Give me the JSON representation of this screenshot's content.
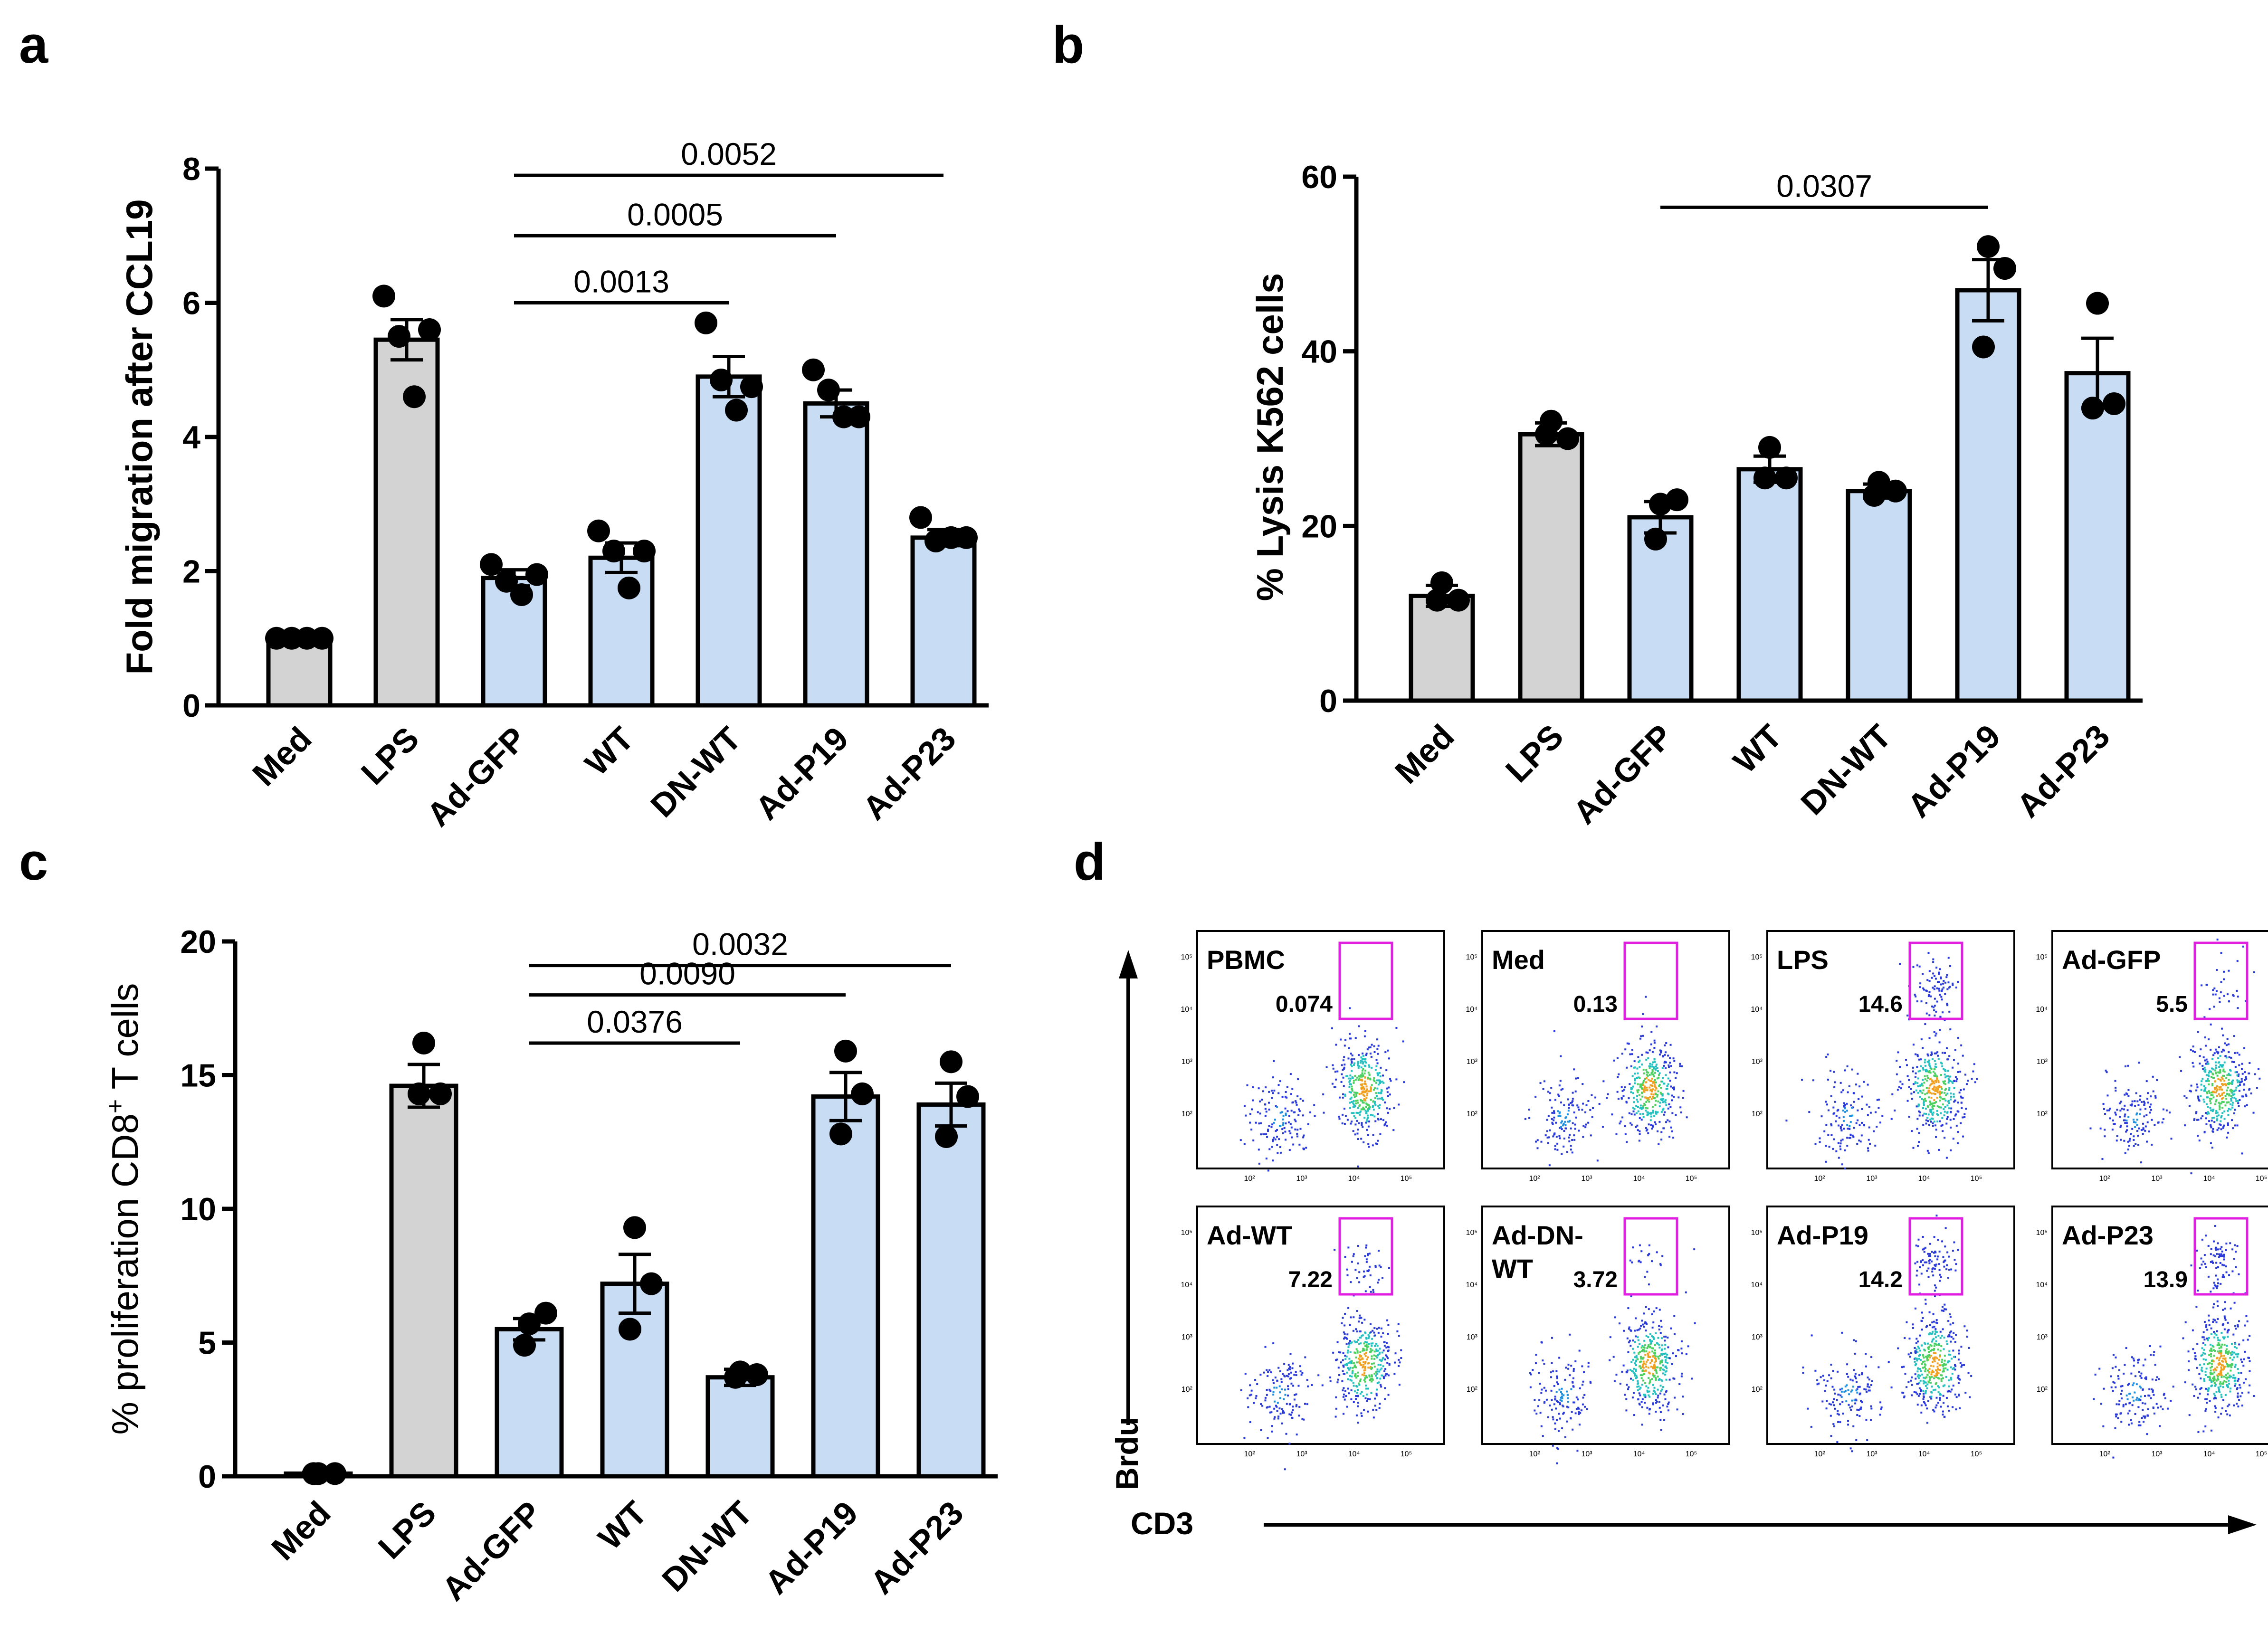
{
  "panels": {
    "a": "a",
    "b": "b",
    "c": "c",
    "d": "d"
  },
  "colors": {
    "control": "#d3d3d3",
    "treatment": "#c8dcf4",
    "gate": "#e020e0",
    "edge": "#000000"
  },
  "chart_data": [
    {
      "panel": "a",
      "type": "bar",
      "title": "",
      "xlabel": "",
      "ylabel": "Fold migration after CCL19",
      "ylim": [
        0,
        8
      ],
      "yticks": [
        0,
        2,
        4,
        6,
        8
      ],
      "categories": [
        "Med",
        "LPS",
        "Ad-GFP",
        "WT",
        "DN-WT",
        "Ad-P19",
        "Ad-P23"
      ],
      "bar_colors": [
        "control",
        "control",
        "treatment",
        "treatment",
        "treatment",
        "treatment",
        "treatment"
      ],
      "values": [
        1.0,
        5.45,
        1.9,
        2.2,
        4.9,
        4.5,
        2.5
      ],
      "errors": [
        0.02,
        0.3,
        0.12,
        0.22,
        0.3,
        0.2,
        0.12
      ],
      "points": [
        [
          1.0,
          1.0,
          1.0,
          1.0
        ],
        [
          6.1,
          5.5,
          4.6,
          5.6
        ],
        [
          2.1,
          1.85,
          1.65,
          1.95
        ],
        [
          2.6,
          2.3,
          1.75,
          2.3
        ],
        [
          5.7,
          4.85,
          4.4,
          4.75
        ],
        [
          5.0,
          4.7,
          4.3,
          4.3
        ],
        [
          2.8,
          2.45,
          2.5,
          2.5
        ]
      ],
      "comparisons": [
        {
          "from": 2,
          "to": 4,
          "label": "0.0013",
          "y": 6.0
        },
        {
          "from": 2,
          "to": 5,
          "label": "0.0005",
          "y": 7.0
        },
        {
          "from": 2,
          "to": 6,
          "label": "0.0052",
          "y": 7.9
        }
      ]
    },
    {
      "panel": "b",
      "type": "bar",
      "title": "",
      "xlabel": "",
      "ylabel": "% Lysis K562 cells",
      "ylim": [
        0,
        60
      ],
      "yticks": [
        0,
        20,
        40,
        60
      ],
      "categories": [
        "Med",
        "LPS",
        "Ad-GFP",
        "WT",
        "DN-WT",
        "Ad-P19",
        "Ad-P23"
      ],
      "bar_colors": [
        "control",
        "control",
        "treatment",
        "treatment",
        "treatment",
        "treatment",
        "treatment"
      ],
      "values": [
        12.0,
        30.5,
        21.0,
        26.5,
        24.0,
        47.0,
        37.5
      ],
      "errors": [
        1.2,
        1.3,
        1.8,
        1.5,
        0.8,
        3.5,
        4.0
      ],
      "points": [
        [
          13.5,
          11.5,
          11.5
        ],
        [
          32.0,
          30.0,
          30.5
        ],
        [
          22.5,
          23.0,
          18.5
        ],
        [
          29.0,
          25.5,
          25.5
        ],
        [
          25.0,
          24.0,
          23.5
        ],
        [
          52.0,
          49.5,
          40.5
        ],
        [
          45.5,
          34.0,
          33.5
        ]
      ],
      "comparisons": [
        {
          "from": 2,
          "to": 5,
          "label": "0.0307",
          "y": 56.5
        }
      ]
    },
    {
      "panel": "c",
      "type": "bar",
      "title": "",
      "xlabel": "",
      "ylabel_main": "% proliferation CD8",
      "ylabel_sup": "+",
      "ylabel_tail": " T cells",
      "ylim": [
        0,
        20
      ],
      "yticks": [
        0,
        5,
        10,
        15,
        20
      ],
      "categories": [
        "Med",
        "LPS",
        "Ad-GFP",
        "WT",
        "DN-WT",
        "Ad-P19",
        "Ad-P23"
      ],
      "bar_colors": [
        "control",
        "control",
        "treatment",
        "treatment",
        "treatment",
        "treatment",
        "treatment"
      ],
      "values": [
        0.1,
        14.6,
        5.5,
        7.2,
        3.7,
        14.2,
        13.9
      ],
      "errors": [
        0.05,
        0.8,
        0.4,
        1.1,
        0.3,
        0.9,
        0.8
      ],
      "points": [
        [
          0.1,
          0.1,
          0.1
        ],
        [
          16.2,
          14.3,
          14.3
        ],
        [
          5.7,
          6.1,
          4.9
        ],
        [
          9.3,
          7.2,
          5.5
        ],
        [
          3.9,
          3.8,
          3.7
        ],
        [
          15.9,
          14.3,
          12.8
        ],
        [
          15.5,
          14.2,
          12.7
        ]
      ],
      "comparisons": [
        {
          "from": 2,
          "to": 4,
          "label": "0.0376",
          "y": 16.2
        },
        {
          "from": 2,
          "to": 5,
          "label": "0.0090",
          "y": 18.0
        },
        {
          "from": 2,
          "to": 6,
          "label": "0.0032",
          "y": 19.1
        }
      ]
    }
  ],
  "flow": {
    "y_axis_label": "Brdu",
    "x_axis_label": "CD3",
    "tick_labels": [
      "10⁵",
      "10⁴",
      "10³",
      "10²"
    ],
    "x_tick_labels": [
      "10²",
      "10³",
      "10⁴",
      "10⁵"
    ],
    "plots": [
      {
        "label": "PBMC",
        "value": "0.074"
      },
      {
        "label": "Med",
        "value": "0.13"
      },
      {
        "label": "LPS",
        "value": "14.6"
      },
      {
        "label": "Ad-GFP",
        "value": "5.5"
      },
      {
        "label": "Ad-WT",
        "value": "7.22"
      },
      {
        "label": "Ad-DN-",
        "label2": "WT",
        "value": "3.72"
      },
      {
        "label": "Ad-P19",
        "value": "14.2"
      },
      {
        "label": "Ad-P23",
        "value": "13.9"
      }
    ]
  }
}
